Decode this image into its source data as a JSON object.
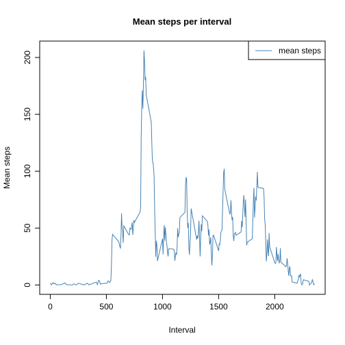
{
  "chart_data": {
    "type": "line",
    "title": "Mean steps per interval",
    "x_label": "Interval",
    "y_label": "Mean steps",
    "x": [
      0,
      10,
      25,
      35,
      45,
      55,
      100,
      130,
      145,
      200,
      210,
      230,
      250,
      300,
      330,
      345,
      410,
      420,
      430,
      440,
      445,
      455,
      505,
      515,
      530,
      540,
      545,
      550,
      555,
      610,
      625,
      630,
      635,
      640,
      645,
      650,
      655,
      700,
      705,
      710,
      720,
      730,
      735,
      745,
      750,
      755,
      800,
      805,
      810,
      815,
      820,
      825,
      830,
      835,
      840,
      845,
      850,
      855,
      900,
      905,
      910,
      915,
      920,
      925,
      930,
      935,
      940,
      945,
      950,
      955,
      1000,
      1005,
      1010,
      1015,
      1020,
      1025,
      1030,
      1035,
      1040,
      1045,
      1050,
      1055,
      1100,
      1105,
      1110,
      1115,
      1120,
      1125,
      1130,
      1135,
      1140,
      1145,
      1150,
      1155,
      1200,
      1205,
      1210,
      1215,
      1220,
      1225,
      1230,
      1235,
      1240,
      1245,
      1250,
      1255,
      1300,
      1305,
      1310,
      1315,
      1320,
      1325,
      1330,
      1335,
      1340,
      1345,
      1350,
      1355,
      1400,
      1405,
      1410,
      1415,
      1420,
      1425,
      1430,
      1435,
      1440,
      1445,
      1450,
      1455,
      1500,
      1505,
      1510,
      1515,
      1520,
      1525,
      1530,
      1535,
      1540,
      1545,
      1550,
      1555,
      1600,
      1605,
      1610,
      1615,
      1620,
      1625,
      1630,
      1635,
      1640,
      1645,
      1650,
      1655,
      1700,
      1705,
      1710,
      1715,
      1720,
      1725,
      1730,
      1735,
      1740,
      1745,
      1750,
      1755,
      1800,
      1805,
      1810,
      1815,
      1820,
      1825,
      1830,
      1835,
      1840,
      1845,
      1850,
      1855,
      1900,
      1905,
      1910,
      1915,
      1920,
      1925,
      1930,
      1935,
      1940,
      1945,
      1950,
      1955,
      2000,
      2005,
      2010,
      2015,
      2020,
      2025,
      2030,
      2035,
      2040,
      2045,
      2050,
      2055,
      2100,
      2105,
      2110,
      2115,
      2120,
      2125,
      2130,
      2135,
      2140,
      2145,
      2150,
      2155,
      2200,
      2205,
      2210,
      2215,
      2220,
      2225,
      2230,
      2235,
      2240,
      2245,
      2250,
      2255,
      2300,
      2305,
      2310,
      2315,
      2320,
      2325,
      2330,
      2335,
      2340,
      2345,
      2350,
      2355
    ],
    "series": [
      {
        "name": "mean steps",
        "color": "#4682b4",
        "values": [
          1.7,
          0.1,
          2.1,
          0.9,
          1.5,
          0.1,
          0.3,
          1.8,
          0.2,
          0,
          1.1,
          0,
          1.5,
          0,
          1.6,
          0.1,
          2.6,
          0.3,
          4.1,
          3.5,
          0.8,
          1.1,
          1.6,
          3.6,
          2.1,
          3.9,
          17,
          39.5,
          44.5,
          38,
          32,
          43,
          63,
          50,
          47,
          37,
          52,
          44,
          44,
          50,
          49,
          55,
          44,
          57,
          55,
          56,
          64,
          68,
          129,
          158,
          171,
          155,
          177,
          206.2,
          196,
          180,
          183,
          167,
          143,
          124,
          109,
          108,
          103,
          96,
          66,
          45,
          24.8,
          38.8,
          34.9,
          21,
          40.6,
          26.9,
          42.4,
          52.7,
          38.9,
          50.8,
          44.3,
          37.4,
          34.7,
          28.3,
          25.1,
          31.9,
          31.4,
          29.7,
          21.3,
          25.5,
          28.4,
          26.5,
          33.4,
          49.9,
          42,
          44.6,
          46,
          59.2,
          63.9,
          87.7,
          94.8,
          92.8,
          63.4,
          50.2,
          54.5,
          32.4,
          26.5,
          37.7,
          45,
          67.3,
          42.3,
          39.9,
          43.3,
          40.98,
          46.2,
          56.4,
          42.8,
          25.1,
          39.97,
          53.5,
          47.3,
          60.8,
          55.8,
          51.96,
          43.6,
          48.7,
          35.5,
          37.5,
          41.8,
          27.5,
          17.1,
          26.1,
          43.6,
          43.8,
          30,
          36.1,
          35.5,
          38.8,
          45.96,
          47.75,
          48.1,
          65.3,
          82.9,
          98.7,
          102.1,
          83.96,
          62.1,
          64.1,
          74.5,
          63.2,
          56.9,
          59.8,
          43.9,
          38.6,
          44.7,
          45.5,
          46.2,
          43.7,
          46.6,
          56.3,
          50.7,
          61.2,
          72.7,
          78.9,
          68.9,
          59.7,
          75.1,
          56.5,
          34.8,
          37.5,
          40.7,
          58,
          74.7,
          85.3,
          59.3,
          67.8,
          77.7,
          74.2,
          85.3,
          99.45,
          86.6,
          85.6,
          84.9,
          77.8,
          58,
          53.4,
          36.3,
          20.7,
          27.4,
          40,
          30.2,
          25.5,
          45.7,
          33.5,
          19.6,
          19,
          19.3,
          33.3,
          26.8,
          21.2,
          27.3,
          21.3,
          19.5,
          21.3,
          32.3,
          20.2,
          15.9,
          17.2,
          23.5,
          19.2,
          12.5,
          8,
          14.7,
          16.3,
          8.7,
          7.8,
          8.1,
          2.6,
          1.5,
          3.7,
          4.8,
          8.5,
          7.1,
          8.7,
          9.75,
          2.2,
          0.3,
          0.1,
          1.6,
          4.6,
          3.3,
          2.8,
          0,
          0.8,
          0.96,
          1.6,
          2.6,
          4.7,
          3.3,
          0.6,
          0.2,
          1.1
        ]
      }
    ],
    "xlim": [
      -94.2,
      2449.2
    ],
    "ylim": [
      -8.25,
      214.4
    ],
    "xticks": [
      0,
      500,
      1000,
      1500,
      2000
    ],
    "yticks": [
      0,
      50,
      100,
      150,
      200
    ],
    "legend": "top-right"
  }
}
